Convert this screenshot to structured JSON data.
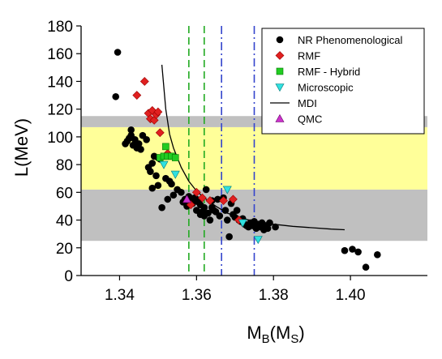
{
  "chart_data": {
    "type": "scatter",
    "title": "",
    "xlabel": "M",
    "xlabel_sub": "B",
    "xlabel_paren": "(M",
    "xlabel_paren_sub": "S",
    "xlabel_close": ")",
    "ylabel": "L(MeV)",
    "xlim": [
      1.33,
      1.42
    ],
    "ylim": [
      0,
      180
    ],
    "x_ticks": [
      1.34,
      1.36,
      1.38,
      1.4
    ],
    "x_tick_labels": [
      "1.34",
      "1.36",
      "1.38",
      "1.40"
    ],
    "y_ticks": [
      0,
      20,
      40,
      60,
      80,
      100,
      120,
      140,
      160,
      180
    ],
    "y_tick_labels": [
      "0",
      "20",
      "40",
      "60",
      "80",
      "100",
      "120",
      "140",
      "160",
      "180"
    ],
    "grid": false,
    "legend_position": "top-right",
    "bands": [
      {
        "y0": 25,
        "y1": 62,
        "color": "#c0c0c0"
      },
      {
        "y0": 62,
        "y1": 107,
        "color": "#ffff99"
      },
      {
        "y0": 107,
        "y1": 115,
        "color": "#c0c0c0"
      }
    ],
    "vlines": [
      {
        "x": 1.358,
        "color": "#22aa22",
        "style": "dash"
      },
      {
        "x": 1.362,
        "color": "#22aa22",
        "style": "dash"
      },
      {
        "x": 1.3665,
        "color": "#3344cc",
        "style": "dashdot"
      },
      {
        "x": 1.375,
        "color": "#3344cc",
        "style": "dashdot"
      }
    ],
    "series": [
      {
        "name": "NR Phenomenological",
        "marker": "circle",
        "color": "#000000",
        "points": [
          [
            1.3395,
            161
          ],
          [
            1.339,
            129
          ],
          [
            1.3415,
            95
          ],
          [
            1.342,
            97
          ],
          [
            1.3425,
            99
          ],
          [
            1.343,
            101
          ],
          [
            1.343,
            105
          ],
          [
            1.3435,
            94
          ],
          [
            1.344,
            98
          ],
          [
            1.3445,
            92
          ],
          [
            1.345,
            95
          ],
          [
            1.3455,
            91
          ],
          [
            1.346,
            101
          ],
          [
            1.347,
            98
          ],
          [
            1.3475,
            78
          ],
          [
            1.348,
            75
          ],
          [
            1.3485,
            63
          ],
          [
            1.3485,
            81
          ],
          [
            1.349,
            86
          ],
          [
            1.3495,
            72
          ],
          [
            1.35,
            85
          ],
          [
            1.35,
            65
          ],
          [
            1.3505,
            84
          ],
          [
            1.351,
            49
          ],
          [
            1.352,
            70
          ],
          [
            1.3525,
            55
          ],
          [
            1.353,
            68
          ],
          [
            1.3535,
            66
          ],
          [
            1.354,
            58
          ],
          [
            1.355,
            62
          ],
          [
            1.356,
            60
          ],
          [
            1.3565,
            53
          ],
          [
            1.357,
            55
          ],
          [
            1.3575,
            50
          ],
          [
            1.358,
            57
          ],
          [
            1.3585,
            54
          ],
          [
            1.359,
            52
          ],
          [
            1.3595,
            56
          ],
          [
            1.36,
            55
          ],
          [
            1.36,
            47
          ],
          [
            1.3605,
            53
          ],
          [
            1.361,
            51
          ],
          [
            1.361,
            44
          ],
          [
            1.3615,
            46
          ],
          [
            1.362,
            49
          ],
          [
            1.362,
            43
          ],
          [
            1.3625,
            62
          ],
          [
            1.363,
            45
          ],
          [
            1.3635,
            40
          ],
          [
            1.364,
            49
          ],
          [
            1.364,
            54
          ],
          [
            1.3645,
            47
          ],
          [
            1.365,
            46
          ],
          [
            1.3655,
            55
          ],
          [
            1.366,
            43
          ],
          [
            1.367,
            56
          ],
          [
            1.3675,
            47
          ],
          [
            1.368,
            40
          ],
          [
            1.3685,
            28
          ],
          [
            1.369,
            52
          ],
          [
            1.3695,
            44
          ],
          [
            1.37,
            42
          ],
          [
            1.3705,
            47
          ],
          [
            1.371,
            40
          ],
          [
            1.3715,
            39
          ],
          [
            1.372,
            41
          ],
          [
            1.3725,
            37
          ],
          [
            1.373,
            36
          ],
          [
            1.3735,
            35
          ],
          [
            1.374,
            38
          ],
          [
            1.3745,
            36
          ],
          [
            1.375,
            39
          ],
          [
            1.3755,
            34
          ],
          [
            1.376,
            37
          ],
          [
            1.3765,
            35
          ],
          [
            1.377,
            38
          ],
          [
            1.3775,
            33
          ],
          [
            1.378,
            36
          ],
          [
            1.3785,
            34
          ],
          [
            1.379,
            38
          ],
          [
            1.3805,
            35
          ],
          [
            1.3985,
            18
          ],
          [
            1.4005,
            19
          ],
          [
            1.402,
            17
          ],
          [
            1.404,
            6
          ],
          [
            1.407,
            15
          ]
        ]
      },
      {
        "name": "RMF",
        "marker": "diamond",
        "color": "#e02020",
        "points": [
          [
            1.3465,
            140
          ],
          [
            1.3445,
            130
          ],
          [
            1.3475,
            117
          ],
          [
            1.3485,
            119
          ],
          [
            1.348,
            113
          ],
          [
            1.349,
            112
          ],
          [
            1.3495,
            116
          ],
          [
            1.35,
            118
          ],
          [
            1.3505,
            103
          ],
          [
            1.3525,
            88
          ],
          [
            1.3585,
            51
          ],
          [
            1.36,
            60
          ],
          [
            1.3615,
            56
          ],
          [
            1.3635,
            54
          ],
          [
            1.367,
            54
          ],
          [
            1.3695,
            55
          ],
          [
            1.371,
            40
          ]
        ]
      },
      {
        "name": "RMF - Hybrid",
        "marker": "square",
        "color": "#22cc22",
        "points": [
          [
            1.3505,
            85
          ],
          [
            1.3515,
            86
          ],
          [
            1.352,
            93
          ],
          [
            1.3525,
            86
          ],
          [
            1.3535,
            86
          ],
          [
            1.3545,
            85
          ]
        ]
      },
      {
        "name": "Microscopic",
        "marker": "triangle-down",
        "color": "#30e0e0",
        "points": [
          [
            1.3545,
            73
          ],
          [
            1.3515,
            80
          ],
          [
            1.368,
            62
          ],
          [
            1.372,
            38
          ],
          [
            1.376,
            26
          ]
        ]
      },
      {
        "name": "MDI",
        "marker": "line",
        "color": "#000000",
        "points": [
          [
            1.351,
            152
          ],
          [
            1.352,
            120
          ],
          [
            1.353,
            102
          ],
          [
            1.354,
            92
          ],
          [
            1.356,
            78
          ],
          [
            1.358,
            68
          ],
          [
            1.36,
            61
          ],
          [
            1.362,
            56
          ],
          [
            1.365,
            50
          ],
          [
            1.368,
            45
          ],
          [
            1.371,
            42
          ],
          [
            1.375,
            39
          ],
          [
            1.38,
            37
          ],
          [
            1.385,
            35.5
          ],
          [
            1.39,
            34.5
          ],
          [
            1.395,
            33.5
          ],
          [
            1.3985,
            33
          ]
        ]
      },
      {
        "name": "QMC",
        "marker": "triangle-up",
        "color": "#cc33cc",
        "points": [
          [
            1.3575,
            55
          ]
        ]
      }
    ]
  }
}
